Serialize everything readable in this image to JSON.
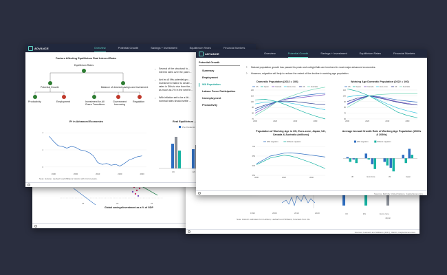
{
  "brand": "ADVANCE",
  "colors": {
    "nav_bg": "#21283d",
    "accent": "#5fd3c3",
    "blue": "#2f6fc2",
    "teal": "#17b3a3",
    "grey": "#8a8f98",
    "green_node": "#2e7d32",
    "red_node": "#c0392b"
  },
  "back_window": {
    "global_chart": {
      "xticks": [
        "15",
        "20",
        "25"
      ],
      "xlabel": "Global savings/investment as a % of GDP"
    }
  },
  "mid_window": {
    "x_ticks": [
      "1990",
      "2000",
      "2010",
      "2020"
    ],
    "note": "Note: Historic estimates from Holston, Laubach and Williams; forecasts from CE.",
    "bar_labels": [
      "UK",
      "ES",
      "Euro-zone",
      "Japan"
    ],
    "sources": "Sources: Laubach and Williams (2017), OECD, Capital Economics"
  },
  "left_window": {
    "nav": [
      "Overview",
      "Potential Growth",
      "Savings + Investment",
      "Equilibrium Rates",
      "Financial Markets"
    ],
    "tree_title": "Factors Affecting Equilibrium Real Interest Rates",
    "tree": {
      "root": "Equilibrium Rates",
      "branch_left": "Potential Growth",
      "branch_right": "Balance of desired savings and investment",
      "leaves": [
        "Productivity",
        "Employment",
        "Investment for AI/ Green Transitions",
        "Government borrowing",
        "Regulation"
      ]
    },
    "bullets": [
      "Several of the structural fo... interest rates over the past t...",
      "And as AI lifts potential gro... investment relative to desire... rates in DMs to rise from the... as much as 2% in the next fe...",
      "With inflation set to be a litt... nominal rates should settle ..."
    ],
    "rstar_chart": {
      "title": "R* in Advanced Economies",
      "yticks": [
        "4",
        "2",
        "0"
      ],
      "xticks": [
        "1990",
        "2000",
        "2010",
        "2020",
        "2030"
      ],
      "x": [
        1988,
        1990,
        1992,
        1994,
        1996,
        1998,
        2000,
        2002,
        2004,
        2006,
        2008,
        2010,
        2012,
        2014,
        2016,
        2018,
        2020,
        2022,
        2024,
        2026,
        2028,
        2030
      ],
      "y": [
        3.6,
        3.0,
        2.5,
        2.4,
        2.2,
        2.4,
        2.3,
        2.0,
        1.9,
        1.7,
        1.3,
        0.5,
        0.3,
        0.4,
        0.2,
        0.3,
        0.1,
        0.4,
        0.8,
        1.0,
        1.2,
        1.3
      ],
      "note": "Note: Holston, Laubach and Williams historic with CE forecasts."
    },
    "bars_chart": {
      "title": "Real Equilibrium ...",
      "legend": "Pre Pandemic",
      "categories": [
        "UK",
        "ES"
      ]
    }
  },
  "front_window": {
    "nav": [
      "Overview",
      "Potential Growth",
      "Savings + Investment",
      "Equilibrium Rates",
      "Financial Markets"
    ],
    "active_nav": "Potential Growth",
    "sidebar_title": "Potential Growth",
    "sidebar": [
      "Summary",
      "Employment",
      "WA Population",
      "Labour Force Participation",
      "Unemployment",
      "Productivity"
    ],
    "bullets": [
      "Natural population growth has passed its peak and outright falls are imminent in most major advanced economies.",
      "However, migration will help to reduce the extent of the decline in working age population."
    ],
    "chart1": {
      "title": "Domestic Population (2022 = 100)",
      "legend": [
        "US",
        "Japan",
        "Canada",
        "Euro-zone",
        "UK",
        "Australia"
      ],
      "yticks": [
        "120",
        "110",
        "100",
        "90",
        "80",
        "70"
      ],
      "xticks": [
        "2000",
        "2020",
        "2040",
        "2060"
      ],
      "colors": [
        "#2f6fc2",
        "#17b3a3",
        "#7a4fc4",
        "#3cc6e0",
        "#2a3b8f",
        "#6bd4b4"
      ],
      "x": [
        2000,
        2010,
        2022,
        2030,
        2040,
        2050,
        2060,
        2070
      ],
      "series": [
        {
          "name": "US",
          "values": [
            84,
            92,
            100,
            104,
            108,
            111,
            113,
            115
          ]
        },
        {
          "name": "Japan",
          "values": [
            103,
            104,
            100,
            95,
            88,
            81,
            75,
            70
          ]
        },
        {
          "name": "Canada",
          "values": [
            80,
            89,
            100,
            104,
            106,
            108,
            110,
            112
          ]
        },
        {
          "name": "Euro-zone",
          "values": [
            96,
            99,
            100,
            99,
            96,
            92,
            89,
            86
          ]
        },
        {
          "name": "UK",
          "values": [
            88,
            94,
            100,
            101,
            100,
            98,
            96,
            95
          ]
        },
        {
          "name": "Australia",
          "values": [
            76,
            86,
            100,
            106,
            112,
            118,
            122,
            125
          ]
        }
      ]
    },
    "chart2": {
      "title": "Working Age Domestic Population (2022 = 100)",
      "legend": [
        "US",
        "Japan",
        "Canada",
        "Euro-zone",
        "UK",
        "Australia"
      ],
      "yticks": [
        "110",
        "100",
        "90",
        "80",
        "70",
        "60"
      ],
      "xticks": [
        "2000",
        "2020",
        "2040",
        "2060"
      ],
      "colors": [
        "#2f6fc2",
        "#17b3a3",
        "#7a4fc4",
        "#3cc6e0",
        "#2a3b8f",
        "#6bd4b4"
      ],
      "x": [
        2000,
        2010,
        2022,
        2030,
        2040,
        2050,
        2060,
        2070
      ],
      "series": [
        {
          "name": "US",
          "values": [
            85,
            93,
            100,
            99,
            96,
            93,
            91,
            89
          ]
        },
        {
          "name": "Japan",
          "values": [
            112,
            108,
            100,
            92,
            82,
            72,
            66,
            62
          ]
        },
        {
          "name": "Canada",
          "values": [
            86,
            94,
            100,
            98,
            94,
            90,
            87,
            84
          ]
        },
        {
          "name": "Euro-zone",
          "values": [
            98,
            101,
            100,
            94,
            86,
            79,
            74,
            70
          ]
        },
        {
          "name": "UK",
          "values": [
            90,
            96,
            100,
            97,
            93,
            89,
            86,
            84
          ]
        },
        {
          "name": "Australia",
          "values": [
            80,
            90,
            100,
            102,
            103,
            104,
            104,
            104
          ]
        }
      ]
    },
    "chart3": {
      "title": "Population of Working Age in US, Euro-zone, Japan, UK, Canada & Australia (millions)",
      "legend": [
        "With migration",
        "Without migration"
      ],
      "yticks": [
        "700",
        "650",
        "600",
        "550"
      ],
      "xticks": [
        "2000",
        "2020",
        "2040"
      ],
      "colors": [
        "#2f6fc2",
        "#17b3a3"
      ],
      "x": [
        2000,
        2010,
        2020,
        2025,
        2030,
        2040,
        2050
      ],
      "series": [
        {
          "name": "With migration",
          "values": [
            610,
            650,
            665,
            666,
            664,
            655,
            645
          ]
        },
        {
          "name": "Without migration",
          "values": [
            605,
            640,
            655,
            650,
            640,
            615,
            585
          ]
        }
      ]
    },
    "chart4": {
      "title": "Average Annual Growth Rate of Working Age Population (2020s & 2030s)",
      "legend": [
        "With migration",
        "Without migration"
      ],
      "categories": [
        "UK",
        "Euro-zone",
        "US",
        "Japan"
      ],
      "colors": [
        "#2f6fc2",
        "#17b3a3"
      ],
      "series": [
        {
          "name": "With migration",
          "values": [
            0.1,
            -0.1,
            0.4,
            -0.5,
            -0.3,
            -0.8,
            0.3,
            0.8
          ]
        },
        {
          "name": "Without migration",
          "values": [
            -0.3,
            -0.4,
            -0.1,
            -0.9,
            -0.6,
            -1.1,
            -0.4,
            0.3
          ]
        }
      ],
      "ylim": [
        -1.2,
        1.0
      ]
    },
    "sources": "Sources: Refinitiv, United Nations, Capital Economics"
  }
}
